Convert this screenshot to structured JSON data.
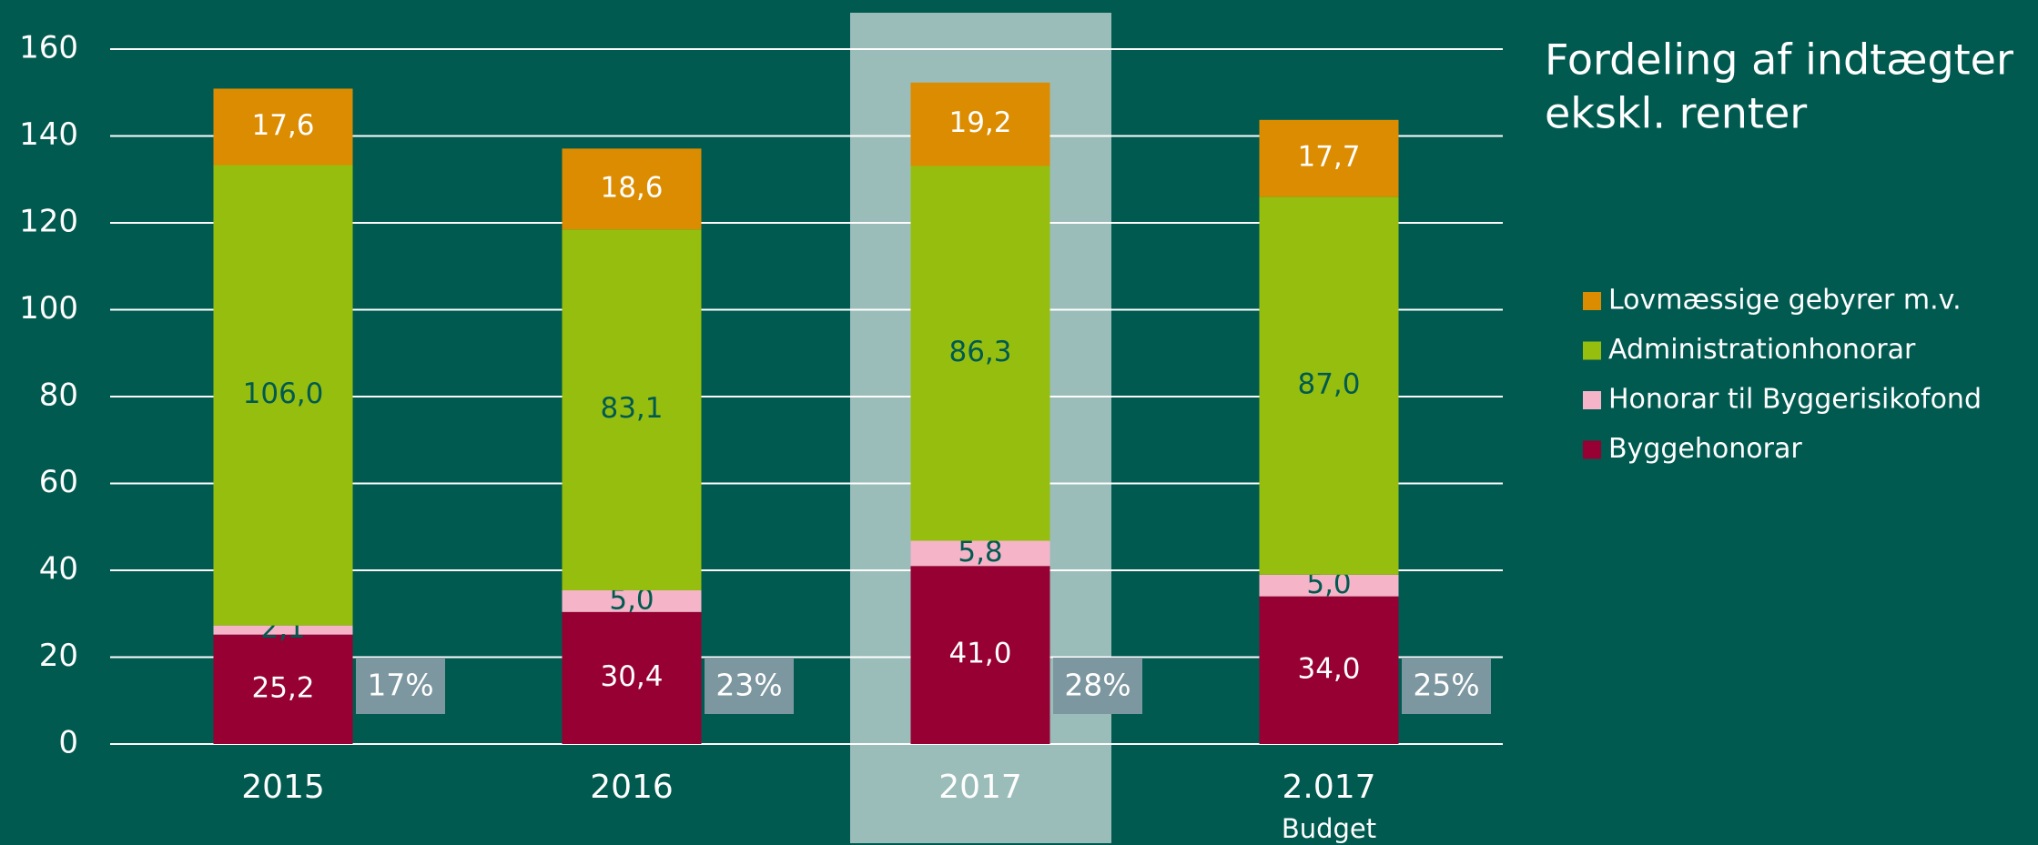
{
  "chart_data": {
    "type": "stacked_bar",
    "title": [
      "Fordeling af indtægter",
      "ekskl. renter"
    ],
    "categories": [
      "2015",
      "2016",
      "2017",
      "2.017"
    ],
    "category_sublabels": [
      null,
      null,
      null,
      "Budget"
    ],
    "highlight": "2017",
    "series": [
      {
        "name": "Byggehonorar",
        "color": "#960032",
        "label_color": "#ffffff",
        "values": [
          25.2,
          30.4,
          41.0,
          34.0
        ],
        "value_labels": [
          "25,2",
          "30,4",
          "41,0",
          "34,0"
        ]
      },
      {
        "name": "Honorar til Byggerisikofond",
        "color": "#f5b4c8",
        "label_color": "#005a50",
        "values": [
          2.1,
          5.0,
          5.8,
          5.0
        ],
        "value_labels": [
          "2,1",
          "5,0",
          "5,8",
          "5,0"
        ]
      },
      {
        "name": "Administrationhonorar",
        "color": "#96be0f",
        "label_color": "#005a50",
        "values": [
          106.0,
          83.1,
          86.3,
          87.0
        ],
        "value_labels": [
          "106,0",
          "83,1",
          "86,3",
          "87,0"
        ]
      },
      {
        "name": "Lovmæssige gebyrer m.v.",
        "color": "#dc8c00",
        "label_color": "#ffffff",
        "values": [
          17.6,
          18.6,
          19.2,
          17.7
        ],
        "value_labels": [
          "17,6",
          "18,6",
          "19,2",
          "17,7"
        ]
      }
    ],
    "shares": [
      17,
      23,
      28,
      25
    ],
    "share_labels": [
      "17%",
      "23%",
      "28%",
      "25%"
    ],
    "ylim": [
      0,
      160
    ],
    "yticks": [
      0,
      20,
      40,
      60,
      80,
      100,
      120,
      140,
      160
    ],
    "grid": true
  }
}
